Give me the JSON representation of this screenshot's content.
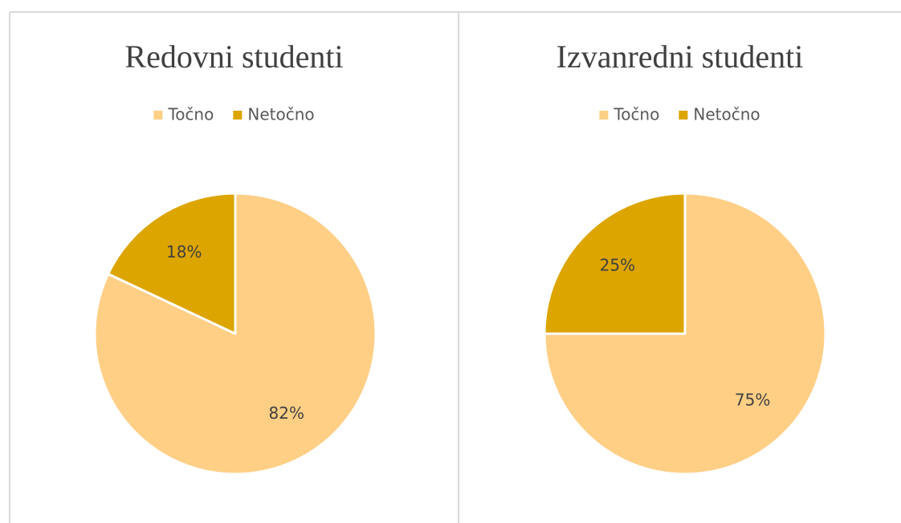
{
  "chart_data": [
    {
      "type": "pie",
      "title": "Redovni studenti",
      "categories": [
        "Točno",
        "Netočno"
      ],
      "values": [
        82,
        18
      ],
      "value_labels": [
        "82%",
        "18%"
      ],
      "colors": [
        "#ffcf86",
        "#dca500"
      ],
      "legend": "top"
    },
    {
      "type": "pie",
      "title": "Izvanredni studenti",
      "categories": [
        "Točno",
        "Netočno"
      ],
      "values": [
        75,
        25
      ],
      "value_labels": [
        "75%",
        "25%"
      ],
      "colors": [
        "#ffcf86",
        "#dca500"
      ],
      "legend": "top"
    }
  ]
}
